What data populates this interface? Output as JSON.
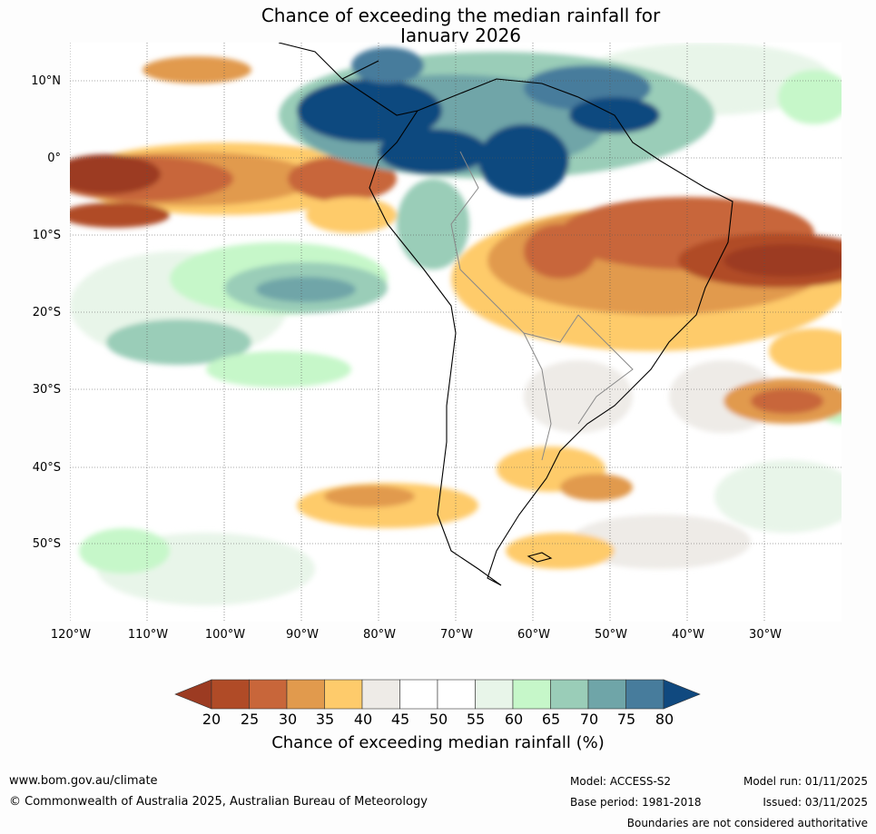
{
  "title": {
    "line1": "Chance of exceeding the median rainfall for",
    "line2": "January 2026"
  },
  "map": {
    "lat_labels": [
      "10°N",
      "0°",
      "10°S",
      "20°S",
      "30°S",
      "40°S",
      "50°S"
    ],
    "lon_labels": [
      "120°W",
      "110°W",
      "100°W",
      "90°W",
      "80°W",
      "70°W",
      "60°W",
      "50°W",
      "40°W",
      "30°W"
    ]
  },
  "colorbar": {
    "ticks": [
      "20",
      "25",
      "30",
      "35",
      "40",
      "45",
      "50",
      "55",
      "60",
      "65",
      "70",
      "75",
      "80"
    ],
    "colors": [
      "#9c3b22",
      "#b04b27",
      "#c8663a",
      "#e19a4d",
      "#fecb6b",
      "#eeebe7",
      "#ffffff",
      "#ffffff",
      "#e8f5e9",
      "#c6f7c9",
      "#9acdb8",
      "#6fa5a8",
      "#477c9c",
      "#10497f"
    ],
    "label": "Chance of exceeding median rainfall (%)"
  },
  "footer": {
    "url": "www.bom.gov.au/climate",
    "copyright": "© Commonwealth of Australia 2025, Australian Bureau of Meteorology",
    "model": "Model: ACCESS-S2",
    "base_period": "Base period: 1981-2018",
    "model_run": "Model run: 01/11/2025",
    "issued": "Issued: 03/11/2025",
    "disclaimer": "Boundaries are not considered authoritative"
  }
}
